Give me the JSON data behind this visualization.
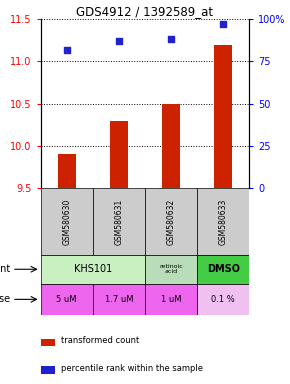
{
  "title": "GDS4912 / 1392589_at",
  "samples": [
    "GSM580630",
    "GSM580631",
    "GSM580632",
    "GSM580633"
  ],
  "red_values": [
    9.9,
    10.3,
    10.5,
    11.2
  ],
  "blue_values": [
    82,
    87,
    88,
    97
  ],
  "ylim_left": [
    9.5,
    11.5
  ],
  "ylim_right": [
    0,
    100
  ],
  "yticks_left": [
    9.5,
    10.0,
    10.5,
    11.0,
    11.5
  ],
  "yticks_right": [
    0,
    25,
    50,
    75,
    100
  ],
  "ytick_labels_right": [
    "0",
    "25",
    "50",
    "75",
    "100%"
  ],
  "dose_labels": [
    "5 uM",
    "1.7 uM",
    "1 uM",
    "0.1 %"
  ],
  "bar_color": "#cc2200",
  "dot_color": "#2222cc",
  "legend_red": "transformed count",
  "legend_blue": "percentile rank within the sample",
  "sample_bg": "#cccccc",
  "khs101_color": "#c8f0c0",
  "retinoic_color": "#b8ddb8",
  "dmso_color": "#44cc44",
  "dose_color_bright": "#ee66ee",
  "dose_color_light": "#f0c0f0"
}
